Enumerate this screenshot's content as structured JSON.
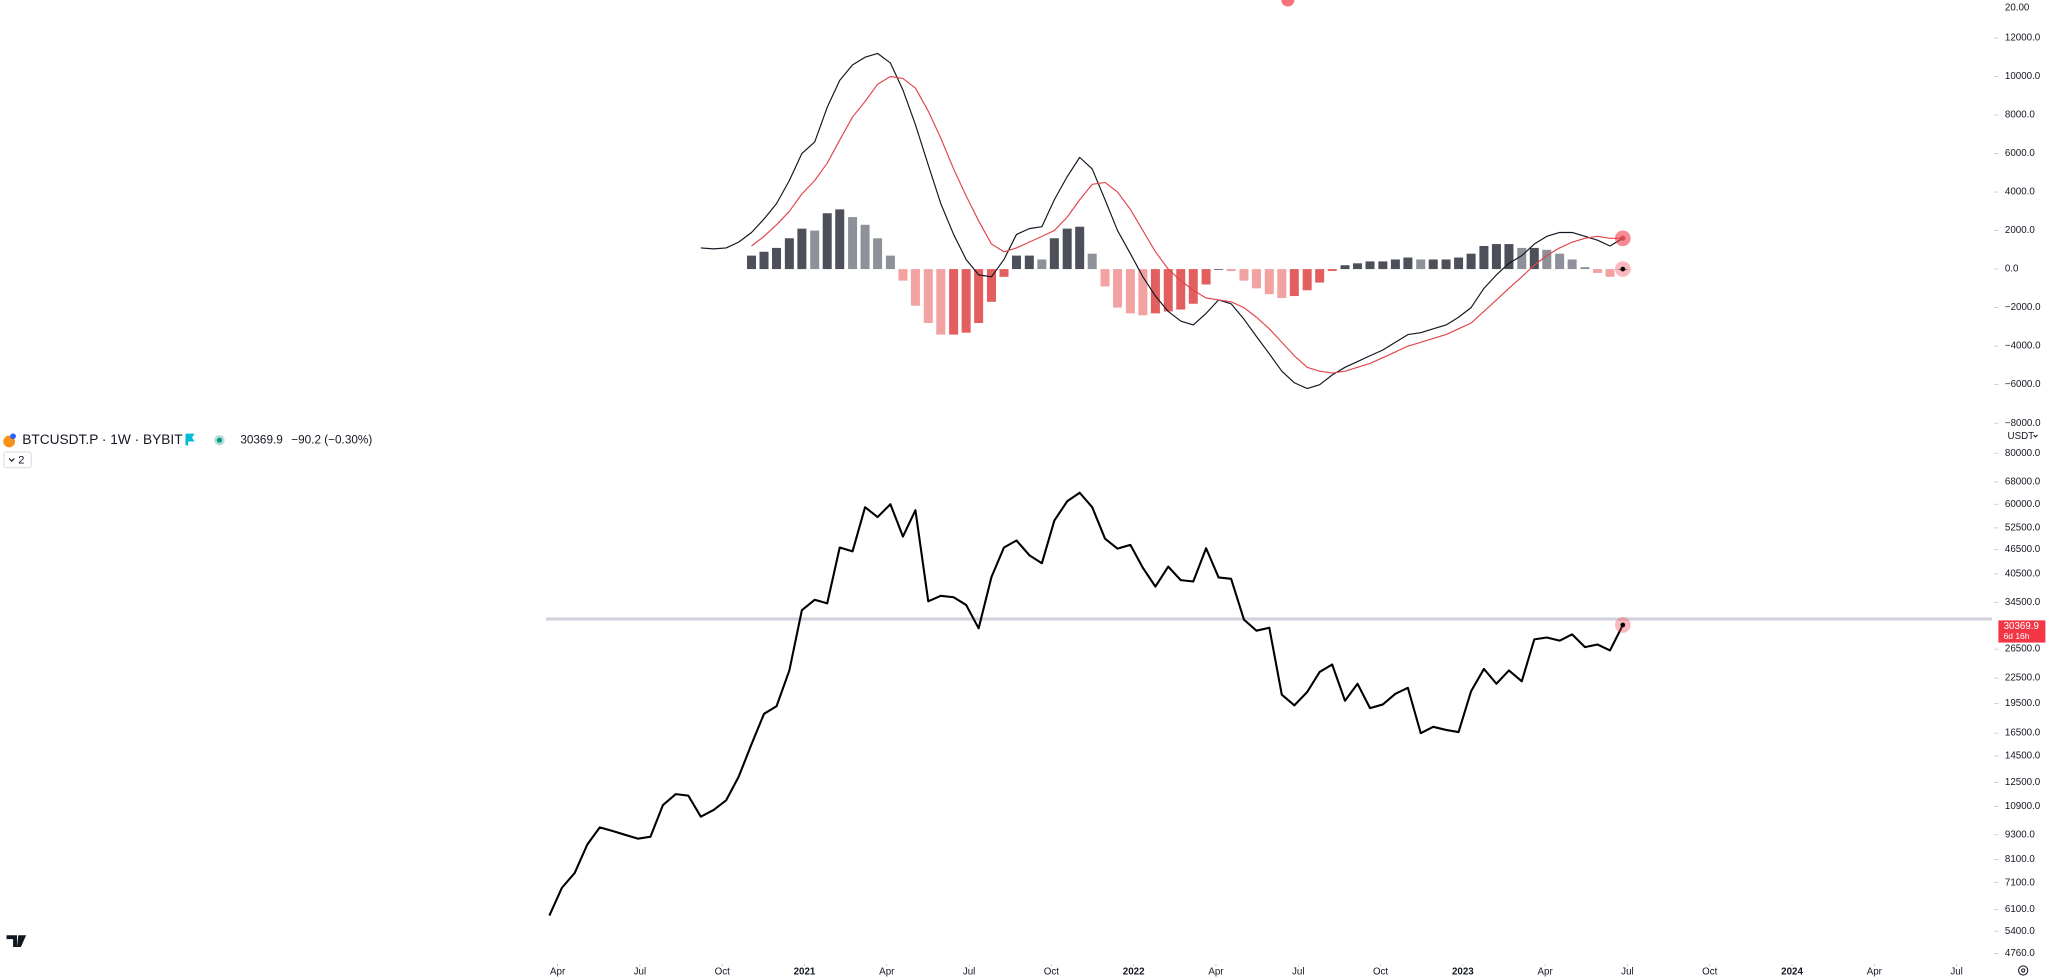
{
  "header": {
    "symbol": "BTCUSDT.P · 1W · BYBIT",
    "change": "−90.2 (−0.30%)",
    "indicator_count": 2
  },
  "top_pane_label": "20.00",
  "chart_data": [
    {
      "type": "line",
      "xlim": [
        2018.556,
        2024.607
      ],
      "x": [
        2020.225,
        2020.263,
        2020.302,
        2020.34,
        2020.378,
        2020.417,
        2020.455,
        2020.494,
        2020.532,
        2020.57,
        2020.609,
        2020.647,
        2020.685,
        2020.724,
        2020.762,
        2020.8,
        2020.839,
        2020.877,
        2020.915,
        2020.954,
        2020.992,
        2021.031,
        2021.069,
        2021.107,
        2021.146,
        2021.184,
        2021.222,
        2021.261,
        2021.299,
        2021.337,
        2021.376,
        2021.414,
        2021.453,
        2021.491,
        2021.529,
        2021.568,
        2021.606,
        2021.644,
        2021.683,
        2021.721,
        2021.759,
        2021.798,
        2021.836,
        2021.874,
        2021.913,
        2021.951,
        2021.99,
        2022.028,
        2022.066,
        2022.105,
        2022.143,
        2022.181,
        2022.22,
        2022.258,
        2022.296,
        2022.335,
        2022.373,
        2022.412,
        2022.45,
        2022.488,
        2022.527,
        2022.565,
        2022.603,
        2022.642,
        2022.68,
        2022.718,
        2022.757,
        2022.795,
        2022.833,
        2022.872,
        2022.91,
        2022.949,
        2022.987,
        2023.025,
        2023.064,
        2023.102,
        2023.14,
        2023.179,
        2023.217,
        2023.255,
        2023.294,
        2023.332,
        2023.371,
        2023.409,
        2023.447,
        2023.486
      ],
      "ylim": [
        -8070,
        13970
      ],
      "yticks": [
        {
          "value": 12000,
          "label": "12000.0"
        },
        {
          "value": 10000,
          "label": "10000.0"
        },
        {
          "value": 8000,
          "label": "8000.0"
        },
        {
          "value": 6000,
          "label": "6000.0"
        },
        {
          "value": 4000,
          "label": "4000.0"
        },
        {
          "value": 2000,
          "label": "2000.0"
        },
        {
          "value": 0,
          "label": "0.0"
        },
        {
          "value": -2000,
          "label": "−2000.0"
        },
        {
          "value": -4000,
          "label": "−4000.0"
        },
        {
          "value": -6000,
          "label": "−6000.0"
        },
        {
          "value": -8000,
          "label": "−8000.0"
        }
      ],
      "marker_color": "#f23645",
      "series": [
        {
          "type": "bar",
          "colors": {
            "pos_up": "#4d505a",
            "pos_down": "#8e919a",
            "neg_down": "#f3a2a2",
            "neg_up": "#e35e5e"
          },
          "values": [
            null,
            null,
            null,
            null,
            null,
            null,
            null,
            null,
            null,
            null,
            null,
            null,
            null,
            null,
            null,
            null,
            700,
            900,
            1100,
            1600,
            2100,
            2000,
            2900,
            3100,
            2700,
            2300,
            1600,
            700,
            -600,
            -1900,
            -2800,
            -3400,
            -3400,
            -3300,
            -2800,
            -1700,
            -400,
            700,
            700,
            500,
            1600,
            2100,
            2200,
            800,
            -900,
            -2000,
            -2300,
            -2400,
            -2300,
            -2200,
            -2100,
            -1800,
            -800,
            0,
            -100,
            -600,
            -1000,
            -1300,
            -1500,
            -1400,
            -1100,
            -700,
            -100,
            200,
            300,
            400,
            400,
            500,
            600,
            500,
            500,
            500,
            600,
            800,
            1200,
            1300,
            1300,
            1100,
            1100,
            1000,
            800,
            500,
            100,
            -200,
            -400,
            0
          ]
        },
        {
          "type": "line",
          "color": "#131722",
          "values": [
            null,
            null,
            null,
            null,
            null,
            null,
            null,
            null,
            null,
            null,
            null,
            null,
            1100,
            1050,
            1100,
            1400,
            1900,
            2600,
            3400,
            4600,
            6000,
            6600,
            8400,
            9800,
            10600,
            11000,
            11200,
            10700,
            9300,
            7500,
            5400,
            3400,
            1800,
            500,
            -300,
            -400,
            500,
            1800,
            2100,
            2200,
            3600,
            4800,
            5800,
            5200,
            3600,
            2000,
            800,
            -400,
            -1400,
            -2200,
            -2700,
            -2900,
            -2300,
            -1600,
            -1800,
            -2600,
            -3500,
            -4400,
            -5300,
            -5900,
            -6200,
            -6000,
            -5500,
            -5100,
            -4800,
            -4500,
            -4200,
            -3800,
            -3400,
            -3300,
            -3100,
            -2900,
            -2500,
            -2000,
            -1000,
            -300,
            300,
            700,
            1300,
            1700,
            1900,
            1900,
            1700,
            1500,
            1200,
            1600
          ]
        },
        {
          "type": "line",
          "color": "#e0474c",
          "values": [
            null,
            null,
            null,
            null,
            null,
            null,
            null,
            null,
            null,
            null,
            null,
            null,
            null,
            null,
            null,
            null,
            1200,
            1700,
            2300,
            3000,
            3900,
            4600,
            5500,
            6700,
            7900,
            8700,
            9600,
            10000,
            9900,
            9400,
            8200,
            6800,
            5200,
            3800,
            2500,
            1300,
            900,
            1100,
            1400,
            1700,
            2000,
            2700,
            3600,
            4400,
            4500,
            4000,
            3100,
            2000,
            900,
            0,
            -600,
            -1100,
            -1500,
            -1600,
            -1700,
            -2000,
            -2500,
            -3100,
            -3800,
            -4500,
            -5100,
            -5300,
            -5400,
            -5300,
            -5100,
            -4900,
            -4600,
            -4300,
            -4000,
            -3800,
            -3600,
            -3400,
            -3100,
            -2800,
            -2200,
            -1600,
            -1000,
            -400,
            200,
            700,
            1100,
            1400,
            1600,
            1700,
            1600,
            1600
          ]
        }
      ]
    },
    {
      "type": "line",
      "yscale": "log",
      "currency": "USDT",
      "countdown": "6d 16h",
      "hline": 31400,
      "hline_color": "#d1d4dc",
      "marker_color": "#f23645",
      "xlim": [
        2018.556,
        2024.607
      ],
      "xticks": [
        {
          "value": 2020.25,
          "label": "Apr"
        },
        {
          "value": 2020.5,
          "label": "Jul"
        },
        {
          "value": 2020.75,
          "label": "Oct"
        },
        2021,
        {
          "value": 2021.25,
          "label": "Apr"
        },
        {
          "value": 2021.5,
          "label": "Jul"
        },
        {
          "value": 2021.75,
          "label": "Oct"
        },
        2022,
        {
          "value": 2022.25,
          "label": "Apr"
        },
        {
          "value": 2022.5,
          "label": "Jul"
        },
        {
          "value": 2022.75,
          "label": "Oct"
        },
        2023,
        {
          "value": 2023.25,
          "label": "Apr"
        },
        {
          "value": 2023.5,
          "label": "Jul"
        },
        {
          "value": 2023.75,
          "label": "Oct"
        },
        2024,
        {
          "value": 2024.25,
          "label": "Apr"
        },
        {
          "value": 2024.5,
          "label": "Jul"
        }
      ],
      "x": [
        2020.225,
        2020.263,
        2020.302,
        2020.34,
        2020.378,
        2020.417,
        2020.455,
        2020.494,
        2020.532,
        2020.57,
        2020.609,
        2020.647,
        2020.685,
        2020.724,
        2020.762,
        2020.8,
        2020.839,
        2020.877,
        2020.915,
        2020.954,
        2020.992,
        2021.031,
        2021.069,
        2021.107,
        2021.146,
        2021.184,
        2021.222,
        2021.261,
        2021.299,
        2021.337,
        2021.376,
        2021.414,
        2021.453,
        2021.491,
        2021.529,
        2021.568,
        2021.606,
        2021.644,
        2021.683,
        2021.721,
        2021.759,
        2021.798,
        2021.836,
        2021.874,
        2021.913,
        2021.951,
        2021.99,
        2022.028,
        2022.066,
        2022.105,
        2022.143,
        2022.181,
        2022.22,
        2022.258,
        2022.296,
        2022.335,
        2022.373,
        2022.412,
        2022.45,
        2022.488,
        2022.527,
        2022.565,
        2022.603,
        2022.642,
        2022.68,
        2022.718,
        2022.757,
        2022.795,
        2022.833,
        2022.872,
        2022.91,
        2022.949,
        2022.987,
        2023.025,
        2023.064,
        2023.102,
        2023.14,
        2023.179,
        2023.217,
        2023.255,
        2023.294,
        2023.332,
        2023.371,
        2023.409,
        2023.447,
        2023.486
      ],
      "ylim": [
        4490,
        84200
      ],
      "yticks": [
        {
          "value": 80000,
          "label": "80000.0"
        },
        {
          "value": 68000,
          "label": "68000.0"
        },
        {
          "value": 60000,
          "label": "60000.0"
        },
        {
          "value": 52500,
          "label": "52500.0"
        },
        {
          "value": 46500,
          "label": "46500.0"
        },
        {
          "value": 40500,
          "label": "40500.0"
        },
        {
          "value": 34500,
          "label": "34500.0"
        },
        {
          "value": 26500,
          "label": "26500.0"
        },
        {
          "value": 22500,
          "label": "22500.0"
        },
        {
          "value": 19500,
          "label": "19500.0"
        },
        {
          "value": 16500,
          "label": "16500.0"
        },
        {
          "value": 14500,
          "label": "14500.0"
        },
        {
          "value": 12500,
          "label": "12500.0"
        },
        {
          "value": 10900,
          "label": "10900.0"
        },
        {
          "value": 9300,
          "label": "9300.0"
        },
        {
          "value": 8100,
          "label": "8100.0"
        },
        {
          "value": 7100,
          "label": "7100.0"
        },
        {
          "value": 6100,
          "label": "6100.0"
        },
        {
          "value": 5400,
          "label": "5400.0"
        },
        {
          "value": 4760,
          "label": "4760.0"
        }
      ],
      "series": [
        {
          "type": "line",
          "color": "#000000",
          "values": [
            5900,
            6900,
            7500,
            8800,
            9700,
            9500,
            9300,
            9100,
            9200,
            11000,
            11700,
            11600,
            10300,
            10700,
            11300,
            12900,
            15500,
            18400,
            19200,
            23500,
            33000,
            35000,
            34300,
            47000,
            46000,
            59000,
            55800,
            60000,
            50000,
            58000,
            34700,
            35800,
            35500,
            34000,
            29800,
            39800,
            47000,
            48900,
            45000,
            43000,
            54700,
            61000,
            64000,
            59000,
            49400,
            46700,
            47700,
            41900,
            37700,
            42200,
            39100,
            38800,
            46800,
            39700,
            39400,
            31300,
            29400,
            29900,
            20500,
            19300,
            20800,
            23300,
            24300,
            19800,
            21800,
            19000,
            19400,
            20600,
            21300,
            16500,
            17100,
            16800,
            16600,
            20900,
            23700,
            21800,
            23500,
            22100,
            28000,
            28300,
            27800,
            28800,
            26800,
            27200,
            26300,
            30369.9
          ]
        }
      ]
    }
  ]
}
